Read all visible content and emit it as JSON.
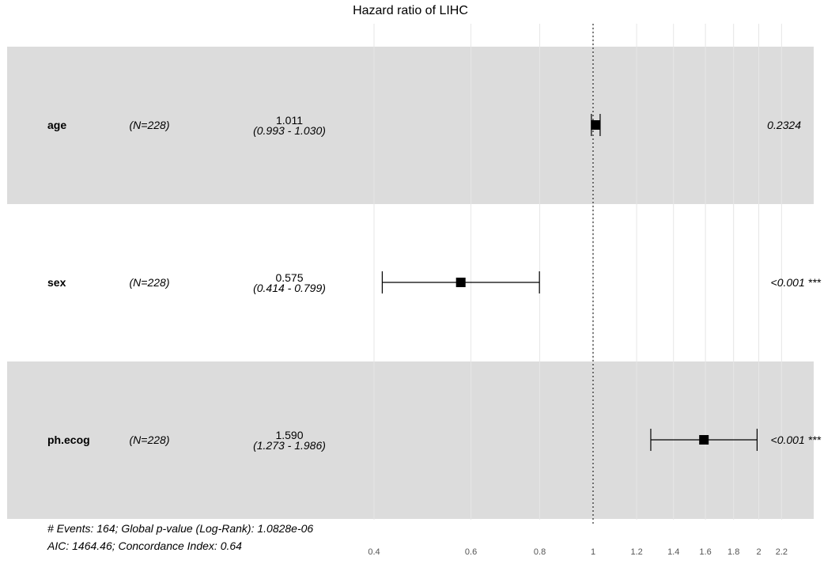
{
  "chart_data": {
    "type": "forest",
    "title": "Hazard ratio of LIHC",
    "scale": "log",
    "reference_line": 1,
    "xlim": [
      0.38,
      2.45
    ],
    "xticks": [
      0.4,
      0.6,
      0.8,
      1,
      1.2,
      1.4,
      1.6,
      1.8,
      2,
      2.2
    ],
    "xtick_labels": [
      "0.4",
      "0.6",
      "0.8",
      "1",
      "1.2",
      "1.4",
      "1.6",
      "1.8",
      "2",
      "2.2"
    ],
    "rows": [
      {
        "variable": "age",
        "n": "(N=228)",
        "hr": 1.011,
        "lower": 0.993,
        "upper": 1.03,
        "hr_label": "1.011",
        "ci_label": "(0.993 - 1.030)",
        "p_label": "0.2324",
        "shaded": true
      },
      {
        "variable": "sex",
        "n": "(N=228)",
        "hr": 0.575,
        "lower": 0.414,
        "upper": 0.799,
        "hr_label": "0.575",
        "ci_label": "(0.414 - 0.799)",
        "p_label": "<0.001 ***",
        "shaded": false
      },
      {
        "variable": "ph.ecog",
        "n": "(N=228)",
        "hr": 1.59,
        "lower": 1.273,
        "upper": 1.986,
        "hr_label": "1.590",
        "ci_label": "(1.273 - 1.986)",
        "p_label": "<0.001 ***",
        "shaded": true
      }
    ],
    "footer": [
      "# Events: 164; Global p-value (Log-Rank): 1.0828e-06",
      "AIC: 1464.46; Concordance Index: 0.64"
    ],
    "colors": {
      "band": "#dcdcdc",
      "grid": "#e6e6e6",
      "marker": "#000000"
    }
  }
}
